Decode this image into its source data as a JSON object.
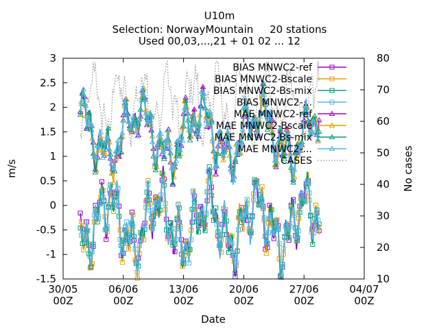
{
  "chart_data": {
    "type": "line",
    "title": "U10m",
    "subtitle_lines": [
      "Selection: NorwayMountain     20 stations",
      "Used 00,03,...,21 + 01 02 ... 12"
    ],
    "xlabel": "Date",
    "ylabel": "m/s",
    "y2label": "No cases",
    "ylim": [
      -1.5,
      3
    ],
    "y2lim": [
      10,
      80
    ],
    "yticks": [
      "-1.5",
      "-1",
      "-0.5",
      "0",
      "0.5",
      "1",
      "1.5",
      "2",
      "2.5",
      "3"
    ],
    "y2ticks": [
      "10",
      "20",
      "30",
      "40",
      "50",
      "60",
      "70",
      "80"
    ],
    "xticks": [
      {
        "date": "30/05",
        "hour": "00Z"
      },
      {
        "date": "06/06",
        "hour": "00Z"
      },
      {
        "date": "13/06",
        "hour": "00Z"
      },
      {
        "date": "20/06",
        "hour": "00Z"
      },
      {
        "date": "27/06",
        "hour": "00Z"
      },
      {
        "date": "04/07",
        "hour": "00Z"
      }
    ],
    "x_range_days": [
      0,
      35
    ],
    "data_range_days": [
      2.0,
      29.75
    ],
    "legend_position": "top-right",
    "series": [
      {
        "name": "BIAS MNWC2-ref",
        "color": "#9400d3",
        "marker": "square"
      },
      {
        "name": "BIAS MNWC2-Bscale",
        "color": "#e69f00",
        "marker": "square"
      },
      {
        "name": "BIAS MNWC2-Bs-mix",
        "color": "#009e73",
        "marker": "square"
      },
      {
        "name": "BIAS MNWC2-...",
        "color": "#56b4e9",
        "marker": "square"
      },
      {
        "name": "MAE MNWC2-ref",
        "color": "#9400d3",
        "marker": "triangle"
      },
      {
        "name": "MAE MNWC2-Bscale",
        "color": "#e69f00",
        "marker": "triangle"
      },
      {
        "name": "MAE MNWC2-Bs-mix",
        "color": "#009e73",
        "marker": "triangle"
      },
      {
        "name": "MAE MNWC2-...",
        "color": "#56b4e9",
        "marker": "triangle"
      },
      {
        "name": "CASES",
        "color": "#a0a0a0",
        "marker": "dash"
      }
    ],
    "approx_summary": {
      "bias_typical_range": [
        -1.3,
        0.5
      ],
      "mae_typical_range": [
        0.8,
        2.5
      ],
      "cases_typical_range": [
        50,
        78
      ]
    }
  }
}
